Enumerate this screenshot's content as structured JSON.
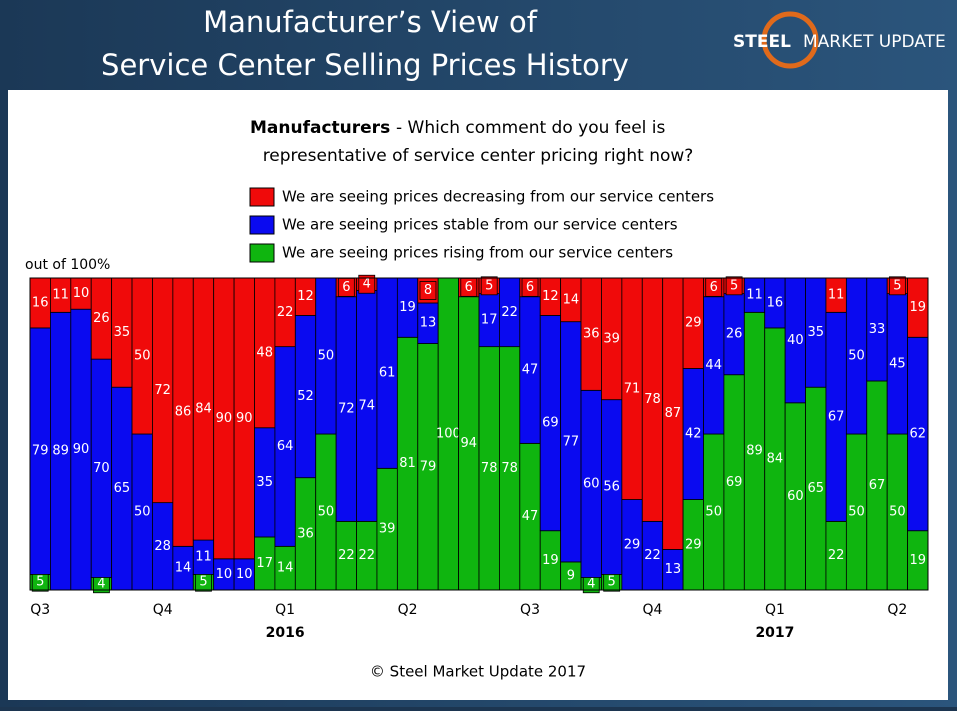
{
  "header": {
    "title_lines": [
      "Manufacturer’s View of",
      "Service Center Selling Prices History"
    ],
    "logo": [
      "STEEL",
      "MARKET UPDATE"
    ]
  },
  "chart_data": {
    "type": "stacked_bar",
    "title_bold": "Manufacturers",
    "title_lines": [
      "- Which comment do you feel is",
      "representative of service center pricing right now?"
    ],
    "y_label": "out of 100%",
    "categories": [
      "Q3",
      null,
      null,
      null,
      null,
      null,
      "Q4",
      null,
      null,
      null,
      null,
      null,
      "Q1",
      null,
      null,
      null,
      null,
      null,
      "Q2",
      null,
      null,
      null,
      null,
      null,
      "Q3",
      null,
      null,
      null,
      null,
      null,
      "Q4",
      null,
      null,
      null,
      null,
      null,
      "Q1",
      null,
      null,
      null,
      null,
      null,
      "Q2",
      null
    ],
    "year_labels": [
      null,
      null,
      null,
      null,
      null,
      null,
      null,
      null,
      null,
      null,
      null,
      null,
      "2016",
      null,
      null,
      null,
      null,
      null,
      null,
      null,
      null,
      null,
      null,
      null,
      null,
      null,
      null,
      null,
      null,
      null,
      null,
      null,
      null,
      null,
      null,
      null,
      "2017",
      null,
      null,
      null,
      null,
      null,
      null,
      null
    ],
    "ylim": [
      0,
      100
    ],
    "series": [
      {
        "name": "We are seeing prices rising from our service centers",
        "color": "#0fb50f",
        "values": [
          5,
          0,
          0,
          4,
          0,
          0,
          0,
          0,
          5,
          0,
          0,
          17,
          14,
          36,
          50,
          22,
          22,
          39,
          81,
          79,
          100,
          94,
          78,
          78,
          47,
          19,
          9,
          4,
          5,
          0,
          0,
          0,
          29,
          50,
          69,
          89,
          84,
          60,
          65,
          22,
          50,
          67,
          50,
          19
        ]
      },
      {
        "name": "We are seeing prices stable from our service centers",
        "color": "#0a0af0",
        "values": [
          79,
          89,
          90,
          70,
          65,
          50,
          28,
          14,
          11,
          10,
          10,
          35,
          64,
          52,
          50,
          72,
          74,
          61,
          19,
          13,
          0,
          0,
          17,
          22,
          47,
          69,
          77,
          60,
          56,
          29,
          22,
          13,
          42,
          44,
          26,
          11,
          16,
          40,
          35,
          67,
          50,
          33,
          45,
          62
        ]
      },
      {
        "name": "We are seeing prices decreasing from our service centers",
        "color": "#f00a0a",
        "values": [
          16,
          11,
          10,
          26,
          35,
          50,
          72,
          86,
          84,
          90,
          90,
          48,
          22,
          12,
          0,
          6,
          4,
          0,
          0,
          8,
          0,
          6,
          5,
          0,
          6,
          12,
          14,
          36,
          39,
          71,
          78,
          87,
          29,
          6,
          5,
          0,
          0,
          0,
          0,
          11,
          0,
          0,
          5,
          19
        ]
      }
    ],
    "legend_order": [
      2,
      1,
      0
    ],
    "footer": "© Steel Market Update 2017"
  }
}
